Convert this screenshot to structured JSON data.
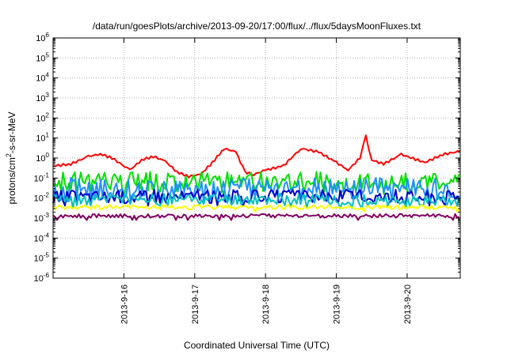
{
  "chart_data": {
    "type": "line",
    "title": "/data/run/goesPlots/archive/2013-09-20/17:00/flux/../flux/5daysMoonFluxes.txt",
    "xlabel": "Coordinated Universal Time (UTC)",
    "ylabel": "protons/cm²-s-sr-MeV",
    "ylabel_parts": {
      "pre": "protons/cm",
      "sup": "2",
      "post": "-s-sr-MeV"
    },
    "yscale": "log",
    "ylim": [
      1e-06,
      1000000.0
    ],
    "xlim": [
      "2013-09-15 00:00",
      "2013-09-20 18:00"
    ],
    "grid": true,
    "y_ticks": [
      {
        "base": "10",
        "exp": "-6"
      },
      {
        "base": "10",
        "exp": "-5"
      },
      {
        "base": "10",
        "exp": "-4"
      },
      {
        "base": "10",
        "exp": "-3"
      },
      {
        "base": "10",
        "exp": "-2"
      },
      {
        "base": "10",
        "exp": "-1"
      },
      {
        "base": "10",
        "exp": "0"
      },
      {
        "base": "10",
        "exp": "1"
      },
      {
        "base": "10",
        "exp": "2"
      },
      {
        "base": "10",
        "exp": "3"
      },
      {
        "base": "10",
        "exp": "4"
      },
      {
        "base": "10",
        "exp": "5"
      },
      {
        "base": "10",
        "exp": "6"
      }
    ],
    "x_ticks": [
      "2013-9-16",
      "2013-9-17",
      "2013-9-18",
      "2013-9-19",
      "2013-9-20"
    ],
    "series": [
      {
        "color": "#ff0000",
        "x": [
          "2013-09-15 00:00",
          "2013-09-15 06:00",
          "2013-09-15 12:00",
          "2013-09-15 16:00",
          "2013-09-15 20:00",
          "2013-09-16 02:00",
          "2013-09-16 06:00",
          "2013-09-16 10:00",
          "2013-09-16 14:00",
          "2013-09-16 18:00",
          "2013-09-16 22:00",
          "2013-09-17 02:00",
          "2013-09-17 06:00",
          "2013-09-17 10:00",
          "2013-09-17 14:00",
          "2013-09-17 17:00",
          "2013-09-17 20:00",
          "2013-09-18 00:00",
          "2013-09-18 06:00",
          "2013-09-18 12:00",
          "2013-09-18 18:00",
          "2013-09-19 00:00",
          "2013-09-19 04:00",
          "2013-09-19 08:00",
          "2013-09-19 10:00",
          "2013-09-19 12:00",
          "2013-09-19 16:00",
          "2013-09-19 22:00",
          "2013-09-20 06:00",
          "2013-09-20 12:00",
          "2013-09-20 18:00"
        ],
        "y": [
          0.4,
          0.5,
          1.2,
          1.6,
          1.0,
          0.25,
          0.8,
          1.2,
          0.7,
          0.2,
          0.12,
          0.15,
          0.6,
          3.0,
          2.0,
          0.2,
          0.15,
          0.25,
          0.4,
          3.0,
          2.0,
          0.6,
          0.25,
          1.0,
          12.0,
          0.8,
          0.5,
          1.5,
          0.6,
          1.5,
          2.2
        ]
      },
      {
        "color": "#00e000",
        "base": 0.065,
        "spread": 3.2
      },
      {
        "color": "#1e90ff",
        "base": 0.03,
        "spread": 3.5
      },
      {
        "color": "#0000cc",
        "base": 0.012,
        "spread": 2.2
      },
      {
        "color": "#00c0c0",
        "base": 0.008,
        "spread": 2.0
      },
      {
        "color": "#ffff00",
        "base": 0.0035,
        "spread": 1.3
      },
      {
        "color": "#800060",
        "base": 0.0013,
        "spread": 1.25
      }
    ]
  }
}
